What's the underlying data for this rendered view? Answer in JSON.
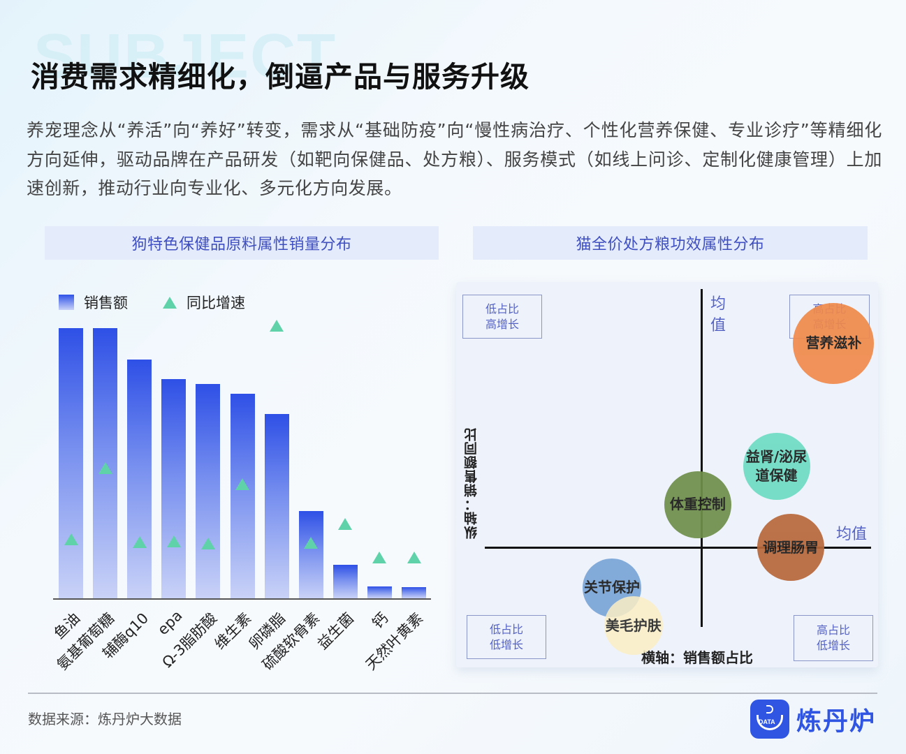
{
  "watermark": "SUBJECT",
  "title": "消费需求精细化，倒逼产品与服务升级",
  "intro": "养宠理念从“养活”向“养好”转变，需求从“基础防疫”向“慢性病治疗、个性化营养保健、专业诊疗”等精细化方向延伸，驱动品牌在产品研发（如靶向保健品、处方粮）、服务模式（如线上问诊、定制化健康管理）上加速创新，推动行业向专业化、多元化方向发展。",
  "left_panel": {
    "title": "狗特色保健品原料属性销量分布",
    "legend": {
      "sales": "销售额",
      "growth": "同比增速"
    }
  },
  "right_panel": {
    "title": "猫全价处方粮功效属性分布",
    "quadrants": {
      "top_left": [
        "低占比",
        "高增长"
      ],
      "top_right": [
        "高占比",
        "高增长"
      ],
      "bottom_left": [
        "低占比",
        "低增长"
      ],
      "bottom_right": [
        "高占比",
        "低增长"
      ]
    },
    "mean_v": "均值",
    "mean_h": "均值",
    "y_axis_label": "纵轴：销售额同比",
    "x_axis_label": "横轴：销售额占比"
  },
  "footer": {
    "source": "数据来源：炼丹炉大数据",
    "brand": "炼丹炉",
    "logo_badge": "DATA"
  },
  "colors": {
    "bar_top": "#2e50e6",
    "bar_bottom": "#c9d2f7",
    "growth_marker": "#5fd2aa",
    "panel_head_bg": "#e4ebfb",
    "panel_head_text": "#3f4fbf",
    "brand": "#2f55e2"
  },
  "chart_data": [
    {
      "type": "bar",
      "title": "狗特色保健品原料属性销量分布",
      "categories": [
        "鱼油",
        "氨基葡萄糖",
        "辅酶q10",
        "epa",
        "Ω-3脂肪酸",
        "维生素",
        "卵磷脂",
        "硫酸软骨素",
        "益生菌",
        "钙",
        "天然叶黄素"
      ],
      "series": [
        {
          "name": "销售额",
          "kind": "bar",
          "values": [
            100,
            100,
            88.4,
            81.2,
            79.4,
            75.6,
            68.1,
            32.4,
            12.3,
            4.4,
            4.1
          ]
        },
        {
          "name": "同比增速",
          "kind": "marker",
          "values": [
            23.4,
            48.8,
            22.3,
            22.5,
            21.7,
            43.2,
            100,
            22.0,
            28.7,
            16.8,
            16.9
          ]
        }
      ],
      "xlabel": "",
      "ylabel": "",
      "legend_position": "top-left",
      "grid": false,
      "note": "No axis ticks shown; values are relative (max bar = 100, max marker = 100)."
    },
    {
      "type": "scatter",
      "subtype": "bubble-quadrant",
      "title": "猫全价处方粮功效属性分布",
      "xlabel": "横轴：销售额占比",
      "ylabel": "纵轴：销售额同比",
      "mean_lines": {
        "x": "均值",
        "y": "均值"
      },
      "quadrant_labels": [
        "低占比 高增长",
        "高占比 高增长",
        "低占比 低增长",
        "高占比 低增长"
      ],
      "points": [
        {
          "label": "营养滋补",
          "x": 0.87,
          "y": 0.86,
          "size": 58,
          "color": "#f08a4b",
          "quadrant": "高占比 高增长"
        },
        {
          "label": "益肾/泌尿道保健",
          "x": 0.71,
          "y": 0.34,
          "size": 48,
          "color": "#6fdcc2",
          "quadrant": "高占比 高增长"
        },
        {
          "label": "体重控制",
          "x": 0.49,
          "y": 0.18,
          "size": 48,
          "color": "#6f8f4a",
          "quadrant": "低占比 高增长"
        },
        {
          "label": "调理肠胃",
          "x": 0.75,
          "y": 0.0,
          "size": 48,
          "color": "#b8683a",
          "quadrant": "高占比 低增长"
        },
        {
          "label": "关节保护",
          "x": 0.25,
          "y": -0.17,
          "size": 42,
          "color": "#7aa6d8",
          "quadrant": "低占比 低增长"
        },
        {
          "label": "美毛护肤",
          "x": 0.31,
          "y": -0.33,
          "size": 42,
          "color": "#fbefc4",
          "quadrant": "低占比 低增长"
        }
      ],
      "grid": false
    }
  ]
}
